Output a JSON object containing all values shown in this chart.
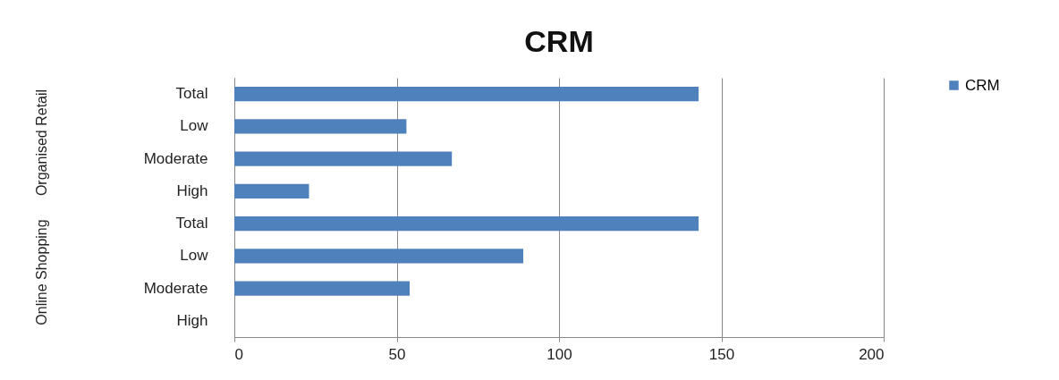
{
  "chart_data": {
    "type": "bar",
    "orientation": "horizontal",
    "title": "CRM",
    "categories": [
      "Total",
      "Low",
      "Moderate",
      "High",
      "Total",
      "Low",
      "Moderate",
      "High"
    ],
    "series": [
      {
        "name": "CRM",
        "color": "#4f81bd",
        "values": [
          143,
          53,
          67,
          23,
          143,
          89,
          54,
          0
        ]
      }
    ],
    "annotations": [
      "Organised Retail",
      "Online Shopping"
    ],
    "xlim": [
      0,
      200
    ],
    "xticks": [
      0,
      50,
      100,
      150,
      200
    ],
    "grid": "x",
    "legend": "right"
  }
}
